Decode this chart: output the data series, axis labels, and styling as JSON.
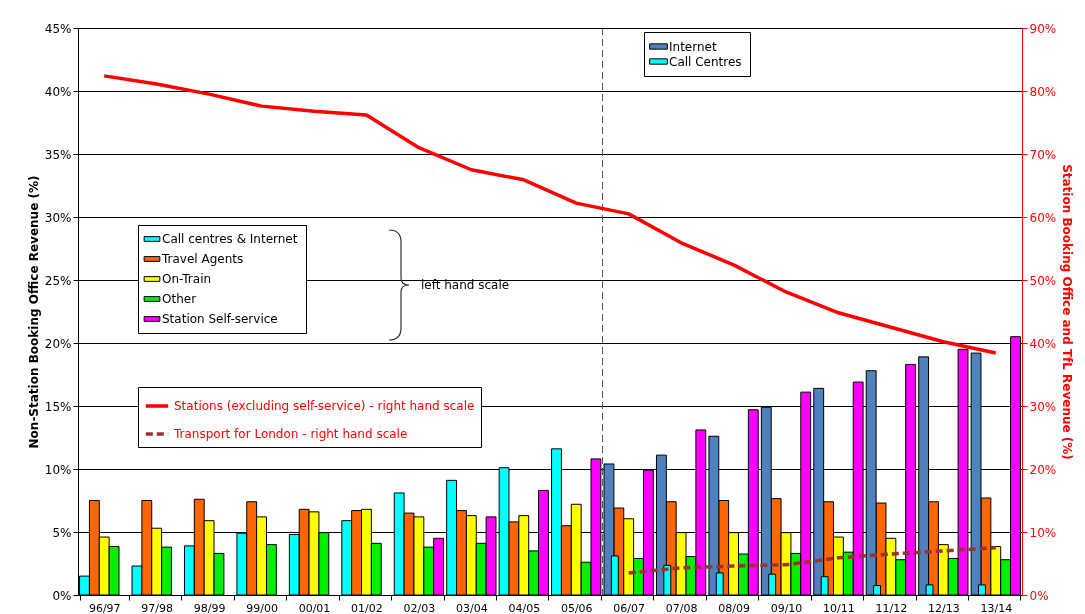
{
  "chart_data": {
    "type": "bar",
    "categories": [
      "96/97",
      "97/98",
      "98/99",
      "99/00",
      "00/01",
      "01/02",
      "02/03",
      "03/04",
      "04/05",
      "05/06",
      "06/07",
      "07/08",
      "08/09",
      "09/10",
      "10/11",
      "11/12",
      "12/13",
      "13/14"
    ],
    "ylabel": "Non-Station Booking Office Revenue (%)",
    "y2label": "Station Booking Office and TfL Revenue (%)",
    "ylim": [
      0,
      45
    ],
    "yticks": [
      {
        "value": 0,
        "label": "0%"
      },
      {
        "value": 5,
        "label": "5%"
      },
      {
        "value": 10,
        "label": "10%"
      },
      {
        "value": 15,
        "label": "15%"
      },
      {
        "value": 20,
        "label": "20%"
      },
      {
        "value": 25,
        "label": "25%"
      },
      {
        "value": 30,
        "label": "30%"
      },
      {
        "value": 35,
        "label": "35%"
      },
      {
        "value": 40,
        "label": "40%"
      },
      {
        "value": 45,
        "label": "45%"
      }
    ],
    "y2lim": [
      0,
      90
    ],
    "y2ticks": [
      {
        "value": 0,
        "label": "0%"
      },
      {
        "value": 10,
        "label": "10%"
      },
      {
        "value": 20,
        "label": "20%"
      },
      {
        "value": 30,
        "label": "30%"
      },
      {
        "value": 40,
        "label": "40%"
      },
      {
        "value": 50,
        "label": "50%"
      },
      {
        "value": 60,
        "label": "60%"
      },
      {
        "value": 70,
        "label": "70%"
      },
      {
        "value": 80,
        "label": "80%"
      },
      {
        "value": 90,
        "label": "90%"
      }
    ],
    "grid": "y",
    "legend": "left",
    "annotations": [
      "left hand scale"
    ],
    "ref_lines": [
      {
        "axis": "x",
        "value": "06/07",
        "color": "#555555",
        "line_style": "dashed"
      }
    ],
    "series": [
      {
        "name": "Call centres & Internet",
        "color": "#00ffff",
        "values": [
          1.5,
          2.3,
          3.9,
          4.9,
          4.8,
          5.9,
          8.1,
          9.1,
          10.1,
          11.6,
          null,
          null,
          null,
          null,
          null,
          null,
          null,
          null
        ]
      },
      {
        "name": "Internet",
        "color": "#4f81bd",
        "values": [
          null,
          null,
          null,
          null,
          null,
          null,
          null,
          null,
          null,
          null,
          10.4,
          11.1,
          12.6,
          14.9,
          16.4,
          17.8,
          18.9,
          19.2
        ]
      },
      {
        "name": "Call Centres",
        "color": "#00ffff",
        "values": [
          null,
          null,
          null,
          null,
          null,
          null,
          null,
          null,
          null,
          null,
          3.1,
          2.35,
          1.75,
          1.65,
          1.45,
          0.75,
          0.8,
          0.8
        ]
      },
      {
        "name": "Travel Agents",
        "color": "#ff6600",
        "values": [
          7.5,
          7.5,
          7.6,
          7.4,
          6.8,
          6.7,
          6.5,
          6.7,
          5.8,
          5.5,
          6.9,
          7.4,
          7.5,
          7.65,
          7.4,
          7.3,
          7.4,
          7.7
        ]
      },
      {
        "name": "On-Train",
        "color": "#ffff00",
        "values": [
          4.6,
          5.3,
          5.9,
          6.2,
          6.6,
          6.8,
          6.2,
          6.3,
          6.3,
          7.2,
          6.05,
          4.95,
          4.95,
          4.95,
          4.6,
          4.5,
          4.0,
          3.85
        ]
      },
      {
        "name": "Other",
        "color": "#00ee00",
        "values": [
          3.85,
          3.8,
          3.3,
          4.0,
          4.95,
          4.1,
          3.8,
          4.1,
          3.5,
          2.6,
          2.9,
          3.05,
          3.25,
          3.3,
          3.4,
          2.8,
          2.9,
          2.8
        ]
      },
      {
        "name": "Station Self-service",
        "color": "#ff00ff",
        "values": [
          null,
          null,
          null,
          null,
          null,
          null,
          4.5,
          6.2,
          8.3,
          10.8,
          9.9,
          13.1,
          14.7,
          16.1,
          16.9,
          18.3,
          19.5,
          20.5
        ]
      },
      {
        "name": "Stations (excluding self-service) - right hand scale",
        "type": "line",
        "axis": "y2",
        "color": "#ff0000",
        "line_style": "solid",
        "values": [
          82.4,
          81.1,
          79.5,
          77.6,
          76.8,
          76.2,
          71.0,
          67.5,
          65.9,
          62.2,
          60.5,
          55.9,
          52.4,
          48.1,
          44.8,
          42.5,
          40.2,
          38.4
        ]
      },
      {
        "name": "Transport for London - right hand scale",
        "type": "line",
        "axis": "y2",
        "color": "#993333",
        "line_style": "dashed",
        "values": [
          null,
          null,
          null,
          null,
          null,
          null,
          null,
          null,
          null,
          null,
          3.5,
          4.3,
          4.6,
          4.8,
          5.9,
          6.5,
          7.0,
          7.5
        ]
      }
    ]
  }
}
